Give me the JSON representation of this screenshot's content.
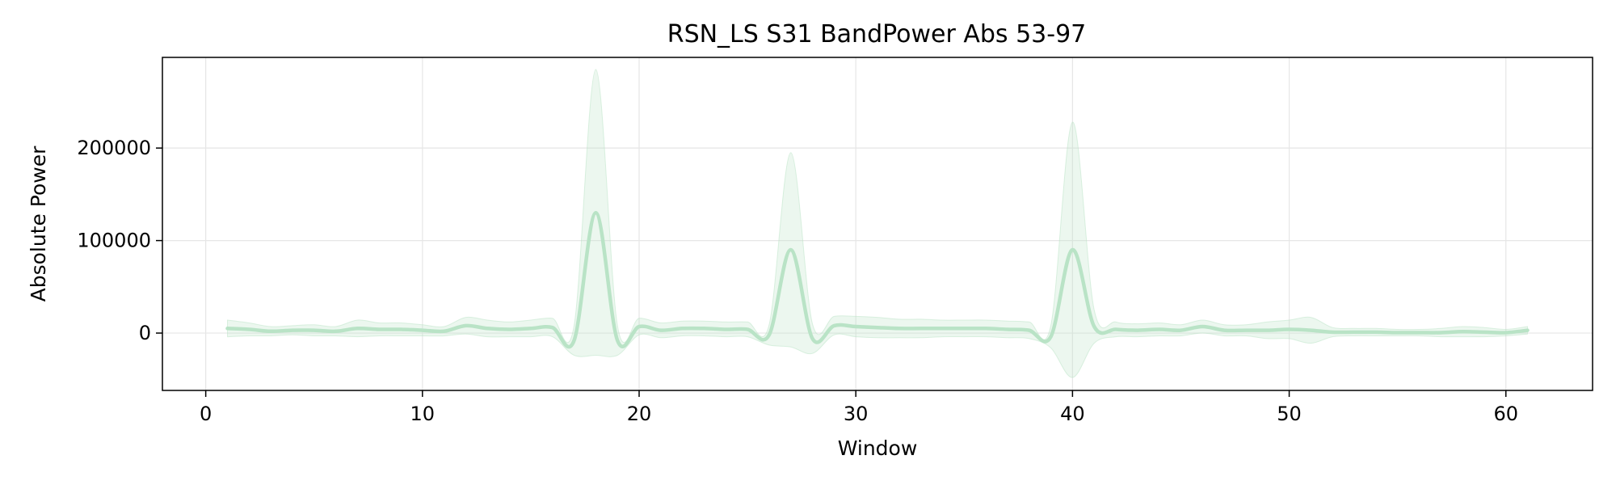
{
  "chart_data": {
    "type": "line",
    "title": "RSN_LS S31 BandPower Abs 53-97",
    "xlabel": "Window",
    "ylabel": "Absolute Power",
    "xlim": [
      -2,
      64
    ],
    "ylim": [
      -62000,
      298000
    ],
    "xticks": [
      0,
      10,
      20,
      30,
      40,
      50,
      60
    ],
    "yticks": [
      0,
      100000,
      200000
    ],
    "grid": true,
    "legend": "none",
    "colors": {
      "line": "#b9e3c6",
      "band": "#b9e3c6",
      "grid": "#e6e6e6",
      "axes": "#000000"
    },
    "series": [
      {
        "x": [
          1,
          2,
          3,
          4,
          5,
          6,
          7,
          8,
          9,
          10,
          11,
          12,
          13,
          14,
          15,
          16,
          17,
          18,
          19,
          20,
          21,
          22,
          23,
          24,
          25,
          26,
          27,
          28,
          29,
          30,
          31,
          32,
          33,
          34,
          35,
          36,
          37,
          38,
          39,
          40,
          41,
          42,
          43,
          44,
          45,
          46,
          47,
          48,
          49,
          50,
          51,
          52,
          53,
          54,
          55,
          56,
          57,
          58,
          59,
          60,
          61
        ],
        "values": [
          5000,
          4000,
          2000,
          3000,
          3000,
          2000,
          5000,
          4000,
          4000,
          3000,
          2000,
          8000,
          5000,
          4000,
          5000,
          6000,
          -8000,
          130000,
          -8000,
          7000,
          3000,
          5000,
          5000,
          4000,
          4000,
          -2000,
          90000,
          -6000,
          8000,
          7000,
          6000,
          5000,
          5000,
          5000,
          5000,
          5000,
          4000,
          3000,
          -4000,
          90000,
          7000,
          4000,
          3000,
          4000,
          3000,
          7000,
          3000,
          3000,
          3000,
          4000,
          3000,
          1000,
          1000,
          1000,
          500,
          500,
          500,
          1500,
          1000,
          500,
          3000
        ],
        "upper": [
          14000,
          11000,
          7000,
          8000,
          9000,
          7000,
          14000,
          11000,
          11000,
          9000,
          7000,
          17000,
          14000,
          12000,
          14000,
          16000,
          8000,
          285000,
          8000,
          16000,
          11000,
          13000,
          13000,
          12000,
          12000,
          9000,
          195000,
          10000,
          18000,
          18000,
          17000,
          15000,
          15000,
          14000,
          14000,
          14000,
          13000,
          12000,
          8000,
          228000,
          25000,
          12000,
          10000,
          11000,
          9000,
          14000,
          9000,
          9000,
          12000,
          14000,
          17000,
          6000,
          5000,
          5000,
          4000,
          4000,
          5000,
          7000,
          6000,
          4000,
          7000
        ],
        "lower": [
          -4000,
          -3000,
          -3000,
          -2000,
          -3000,
          -3000,
          -4000,
          -3000,
          -3000,
          -3000,
          -3000,
          -1000,
          -4000,
          -4000,
          -4000,
          -4000,
          -24000,
          -24000,
          -24000,
          -2000,
          -5000,
          -3000,
          -3000,
          -4000,
          -4000,
          -13000,
          -15000,
          -22000,
          -2000,
          -4000,
          -5000,
          -5000,
          -5000,
          -4000,
          -4000,
          -4000,
          -5000,
          -6000,
          -16000,
          -48000,
          -11000,
          -4000,
          -4000,
          -3000,
          -3000,
          0,
          -3000,
          -3000,
          -6000,
          -6000,
          -11000,
          -4000,
          -3000,
          -3000,
          -3000,
          -3000,
          -4000,
          -4000,
          -4000,
          -3000,
          -1000
        ]
      }
    ]
  }
}
